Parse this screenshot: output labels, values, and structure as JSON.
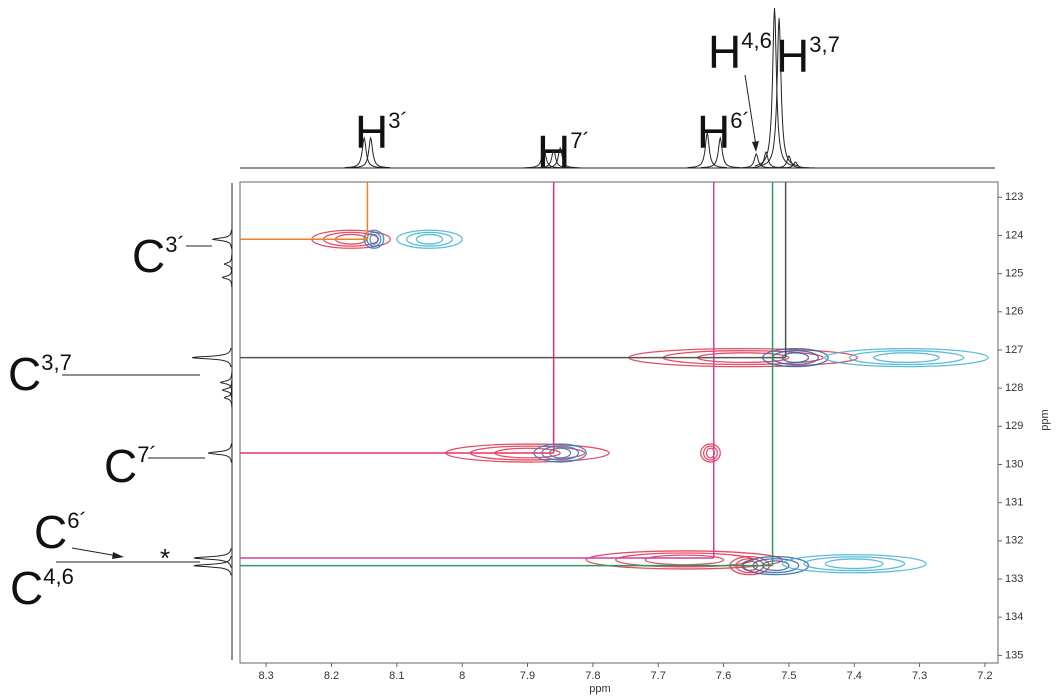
{
  "chart_data": {
    "type": "nmr2d",
    "x_label": "ppm",
    "y_label": "ppm",
    "xlim": [
      8.34,
      7.18
    ],
    "xticks": [
      8.3,
      8.2,
      8.1,
      8.0,
      7.9,
      7.8,
      7.7,
      7.6,
      7.5,
      7.4,
      7.3,
      7.2
    ],
    "ylim": [
      122.6,
      135.2
    ],
    "yticks": [
      123,
      124,
      125,
      126,
      127,
      128,
      129,
      130,
      131,
      132,
      133,
      134,
      135
    ],
    "h_labels": [
      {
        "base": "H",
        "sup": "3´"
      },
      {
        "base": "H",
        "sup": "7´"
      },
      {
        "base": "H",
        "sup": "6´"
      },
      {
        "base": "H",
        "sup": "4,6"
      },
      {
        "base": "H",
        "sup": "3,7"
      }
    ],
    "c_labels": [
      {
        "base": "C",
        "sup": "3´"
      },
      {
        "base": "C",
        "sup": "3,7"
      },
      {
        "base": "C",
        "sup": "7´"
      },
      {
        "base": "C",
        "sup": "6´"
      },
      {
        "base": "C",
        "sup": "4,6"
      }
    ],
    "impurity_mark": "*",
    "h_peaks": {
      "x": [
        8.15,
        8.14,
        7.875,
        7.86,
        7.85,
        7.625,
        7.605,
        7.55,
        7.535,
        7.522,
        7.515,
        7.5,
        7.49
      ],
      "values": [
        30,
        30,
        20,
        18,
        20,
        35,
        30,
        14,
        16,
        160,
        150,
        12,
        6
      ],
      "color": "#222"
    },
    "c_peaks": {
      "y": [
        124.1,
        124.75,
        125.1,
        127.2,
        127.85,
        128.05,
        128.25,
        129.7,
        132.45,
        132.65
      ],
      "values": [
        20,
        8,
        10,
        42,
        12,
        10,
        8,
        25,
        40,
        40
      ],
      "color": "#222"
    },
    "correlations": {
      "x": [
        8.145,
        7.86,
        7.615,
        7.525,
        7.505
      ],
      "y": [
        124.1,
        129.7,
        132.45,
        132.65,
        127.2
      ],
      "colors": [
        "#f08020",
        "#e8306a",
        "#d040a0",
        "#2a9a60",
        "#555555"
      ]
    },
    "contours": {
      "x": [
        8.17,
        8.135,
        8.05,
        7.57,
        7.49,
        7.32,
        7.9,
        7.85,
        7.62,
        7.66,
        7.56,
        7.52,
        7.4
      ],
      "y": [
        124.1,
        124.1,
        124.1,
        127.2,
        127.2,
        127.2,
        129.7,
        129.7,
        129.7,
        132.5,
        132.65,
        132.65,
        132.6
      ],
      "width": [
        0.12,
        0.03,
        0.1,
        0.35,
        0.1,
        0.25,
        0.25,
        0.08,
        0.03,
        0.3,
        0.06,
        0.1,
        0.22
      ],
      "colors": [
        "#e0304a",
        "#2a7fc0",
        "#40b0d0",
        "#e0304a",
        "#2a5fa0",
        "#40b0d0",
        "#e0304a",
        "#2a7fc0",
        "#e0304a",
        "#e0304a",
        "#e0304a",
        "#2a5fa0",
        "#40b0d0"
      ]
    }
  }
}
